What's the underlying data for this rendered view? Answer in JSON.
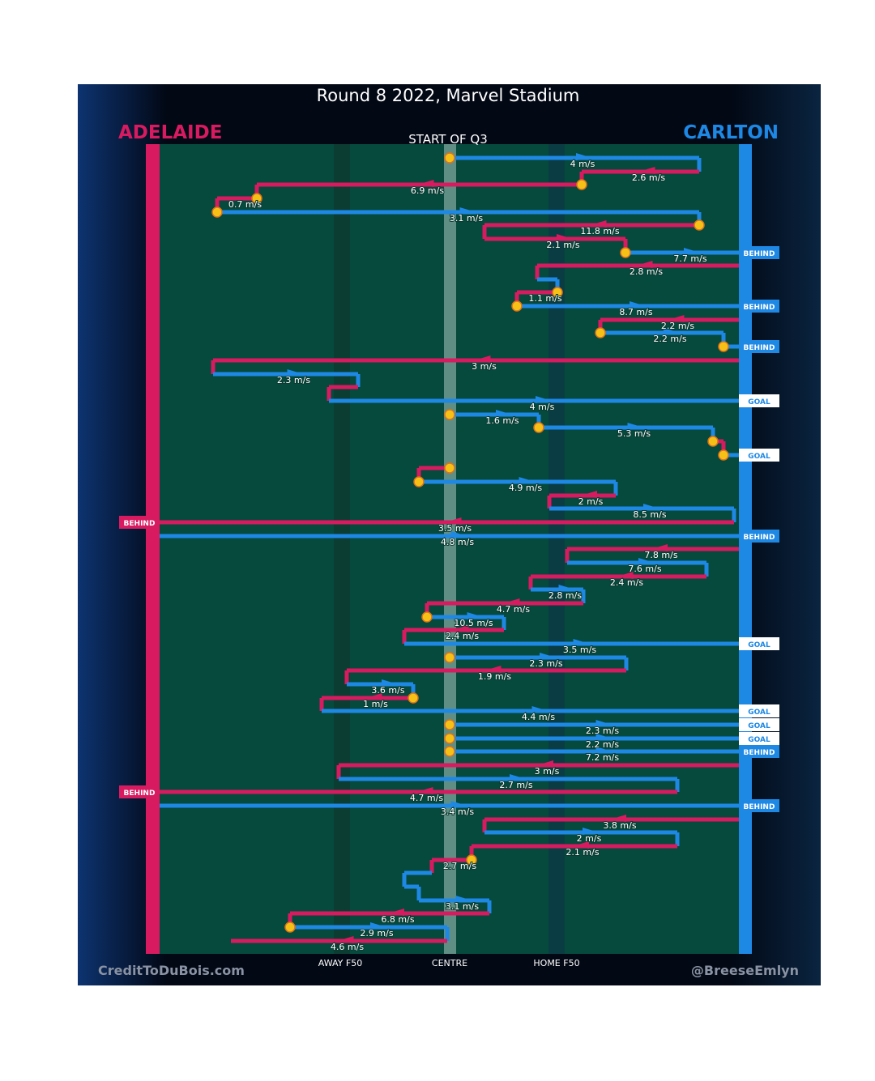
{
  "header": {
    "title": "Round 8 2022, Marvel Stadium",
    "stage": "START OF Q3"
  },
  "teams": [
    {
      "name": "ADELAIDE",
      "color": "#d81b60"
    },
    {
      "name": "CARLTON",
      "color": "#1e88e5"
    }
  ],
  "zones": [
    "AWAY F50",
    "CENTRE",
    "HOME F50"
  ],
  "credits": {
    "left": "CreditToDuBois.com",
    "right": "@BreeseEmlyn"
  },
  "rows": [
    {
      "label": "4 m/s"
    },
    {
      "label": "2.6 m/s"
    },
    {
      "label": "6.9 m/s"
    },
    {
      "label": "0.7 m/s"
    },
    {
      "label": "3.1 m/s"
    },
    {
      "label": "11.8 m/s"
    },
    {
      "label": "2.1 m/s"
    },
    {
      "label": "7.7 m/s",
      "outcome": "BEHIND"
    },
    {
      "label": "2.8 m/s"
    },
    {},
    {
      "label": "1.1 m/s"
    },
    {
      "label": "8.7 m/s",
      "outcome": "BEHIND"
    },
    {
      "label": "2.2 m/s"
    },
    {
      "label": "2.2 m/s"
    },
    {
      "outcome": "BEHIND"
    },
    {
      "label": "3 m/s"
    },
    {
      "label": "2.3 m/s"
    },
    {},
    {
      "label": "4 m/s",
      "outcome": "GOAL"
    },
    {
      "label": "1.6 m/s"
    },
    {
      "label": "5.3 m/s"
    },
    {},
    {
      "outcome": "GOAL"
    },
    {},
    {
      "label": "4.9 m/s"
    },
    {
      "label": "2 m/s"
    },
    {
      "label": "8.5 m/s"
    },
    {
      "label": "3.5 m/s",
      "outcome": "BEHIND"
    },
    {
      "label": "4.8 m/s",
      "outcome": "BEHIND"
    },
    {
      "label": "7.8 m/s"
    },
    {
      "label": "7.6 m/s"
    },
    {
      "label": "2.4 m/s"
    },
    {
      "label": "2.8 m/s"
    },
    {
      "label": "4.7 m/s"
    },
    {
      "label": "10.5 m/s"
    },
    {
      "label": "2.4 m/s"
    },
    {
      "label": "3.5 m/s",
      "outcome": "GOAL"
    },
    {
      "label": "2.3 m/s"
    },
    {
      "label": "1.9 m/s"
    },
    {
      "label": "3.6 m/s"
    },
    {
      "label": "1 m/s"
    },
    {
      "label": "4.4 m/s",
      "outcome": "GOAL"
    },
    {
      "label": "2.3 m/s",
      "outcome": "GOAL"
    },
    {
      "label": "2.2 m/s",
      "outcome": "GOAL"
    },
    {
      "label": "7.2 m/s",
      "outcome": "BEHIND"
    },
    {
      "label": "3 m/s"
    },
    {
      "label": "2.7 m/s"
    },
    {
      "label": "4.7 m/s",
      "outcome": "BEHIND"
    },
    {
      "label": "3.4 m/s",
      "outcome": "BEHIND"
    },
    {
      "label": "3.8 m/s"
    },
    {
      "label": "2 m/s"
    },
    {
      "label": "2.1 m/s"
    },
    {
      "label": "2.7 m/s"
    },
    {},
    {},
    {
      "label": "3.1 m/s"
    },
    {
      "label": "6.8 m/s"
    },
    {
      "label": "2.9 m/s"
    },
    {
      "label": "4.6 m/s"
    }
  ]
}
